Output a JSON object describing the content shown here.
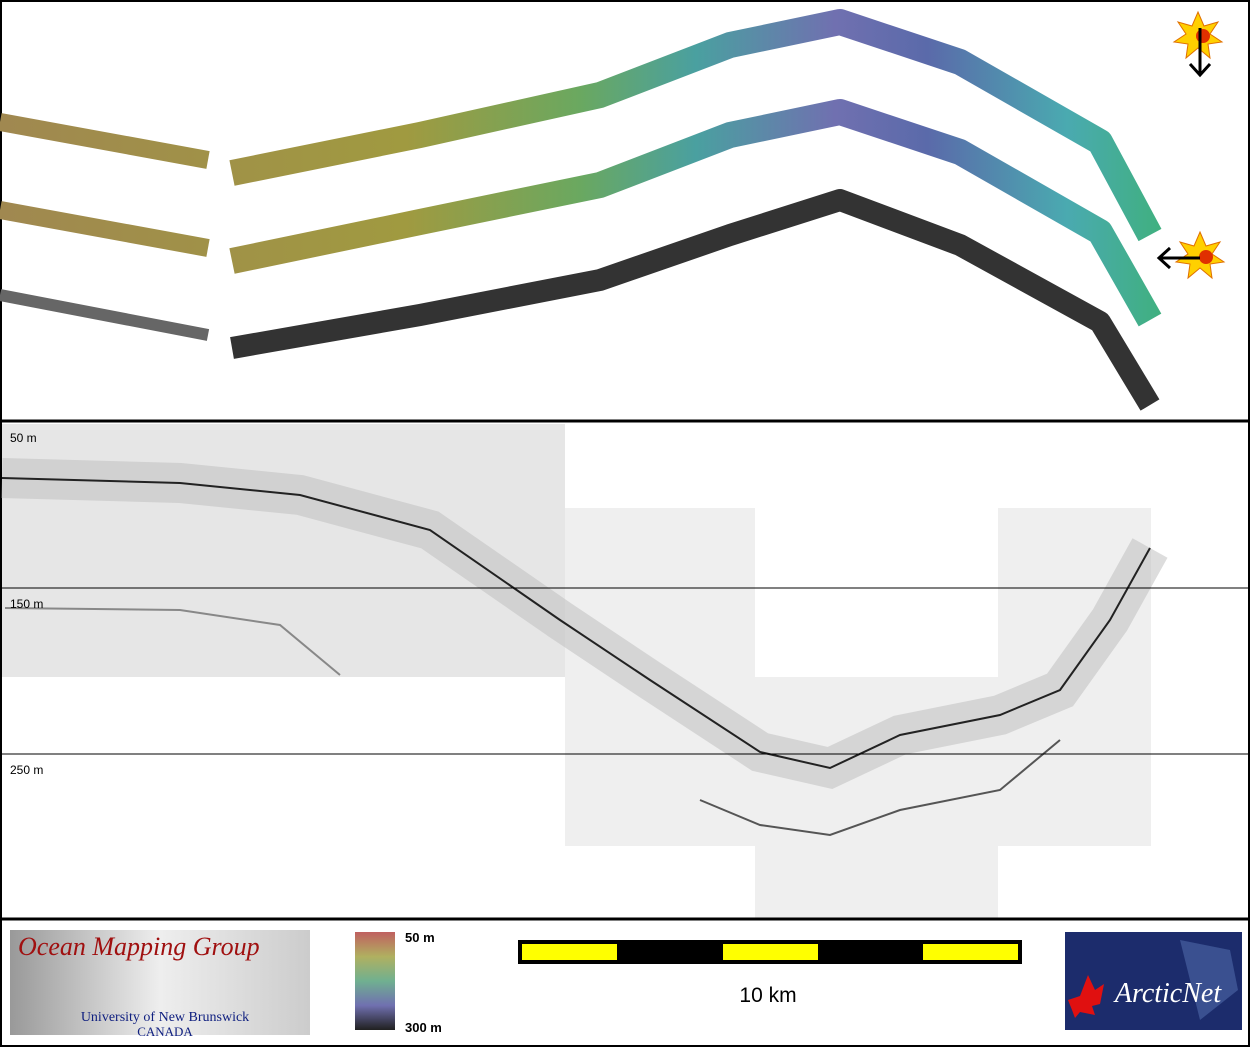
{
  "profile": {
    "depth_labels": [
      "50 m",
      "150 m",
      "250 m"
    ]
  },
  "legend": {
    "logo": {
      "title": "Ocean Mapping Group",
      "subtitle": "University of New Brunswick",
      "country": "CANADA"
    },
    "colorbar": {
      "top": "50 m",
      "bottom": "300 m"
    },
    "scale_bar": "10 km",
    "partner": "ArcticNet"
  }
}
